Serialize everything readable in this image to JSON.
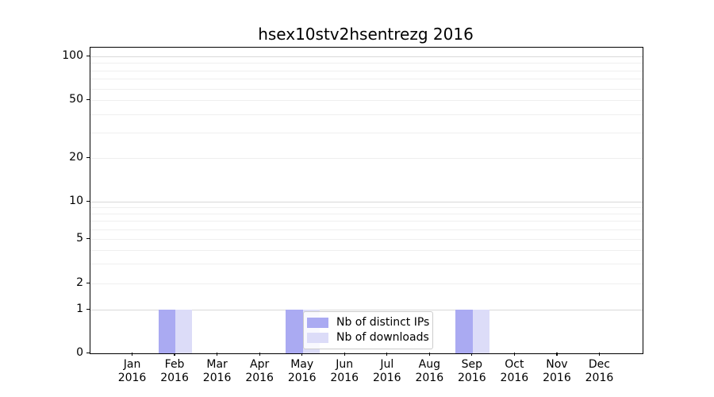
{
  "chart_data": {
    "type": "bar",
    "title": "hsex10stv2hsentrezg 2016",
    "x_year": "2016",
    "categories": [
      "Jan",
      "Feb",
      "Mar",
      "Apr",
      "May",
      "Jun",
      "Jul",
      "Aug",
      "Sep",
      "Oct",
      "Nov",
      "Dec"
    ],
    "series": [
      {
        "name": "Nb of distinct IPs",
        "color": "#aaaaf2",
        "values": [
          0,
          1,
          0,
          0,
          1,
          0,
          0,
          0,
          1,
          0,
          0,
          0
        ]
      },
      {
        "name": "Nb of downloads",
        "color": "#dcdcf8",
        "values": [
          0,
          1,
          0,
          0,
          1,
          0,
          0,
          0,
          1,
          0,
          0,
          0
        ]
      }
    ],
    "yscale": "symlog",
    "ylim": [
      0,
      115
    ],
    "yticks": [
      0,
      1,
      2,
      5,
      10,
      20,
      50,
      100
    ],
    "major_gridlines": [
      1,
      10,
      100
    ],
    "minor_gridlines": [
      2,
      3,
      4,
      5,
      6,
      7,
      8,
      9,
      20,
      30,
      40,
      50,
      60,
      70,
      80,
      90
    ],
    "grid": true,
    "legend_position": "lower center",
    "colors": {
      "bar_distinct_ips": "#aaaaf2",
      "bar_downloads": "#dcdcf8",
      "major_grid": "#d9d9d9",
      "minor_grid": "#efefef",
      "axis": "#000000",
      "legend_border": "#cccccc",
      "background": "#ffffff"
    }
  }
}
